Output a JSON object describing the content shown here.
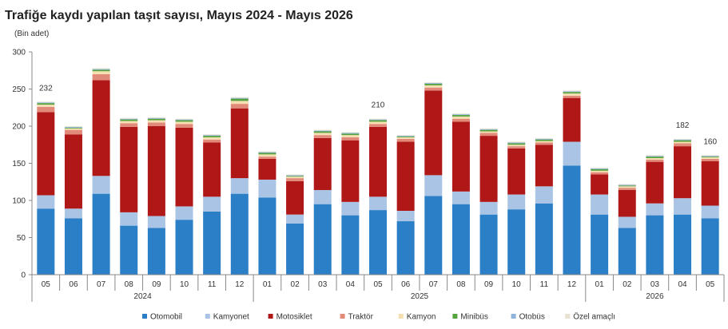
{
  "chart_data": {
    "type": "bar",
    "stacked": true,
    "title": "Trafiğe kaydı yapılan taşıt sayısı, Mayıs 2024 - Mayıs 2026",
    "unit_label": "(Bin adet)",
    "ylim": [
      0,
      300
    ],
    "yticks": [
      0,
      50,
      100,
      150,
      200,
      250,
      300
    ],
    "grid": false,
    "legend_position": "bottom",
    "categories": [
      "05",
      "06",
      "07",
      "08",
      "09",
      "10",
      "11",
      "12",
      "01",
      "02",
      "03",
      "04",
      "05",
      "06",
      "07",
      "08",
      "09",
      "10",
      "11",
      "12",
      "01",
      "02",
      "03",
      "04",
      "05"
    ],
    "year_groups": [
      {
        "label": "2024",
        "start": 0,
        "end": 7
      },
      {
        "label": "2025",
        "start": 8,
        "end": 19
      },
      {
        "label": "2026",
        "start": 20,
        "end": 24
      }
    ],
    "series": [
      {
        "name": "Otomobil",
        "color": "#2a7fc7",
        "values": [
          89,
          76,
          109,
          66,
          63,
          74,
          85,
          109,
          104,
          69,
          95,
          80,
          87,
          72,
          106,
          95,
          81,
          88,
          96,
          147,
          81,
          63,
          80,
          81,
          76
        ]
      },
      {
        "name": "Kamyonet",
        "color": "#a9c4e4",
        "values": [
          18,
          13,
          24,
          18,
          16,
          18,
          20,
          21,
          24,
          12,
          19,
          18,
          18,
          14,
          28,
          17,
          17,
          20,
          23,
          32,
          27,
          15,
          16,
          22,
          17
        ]
      },
      {
        "name": "Motosiklet",
        "color": "#b01818",
        "values": [
          112,
          100,
          129,
          115,
          121,
          106,
          73,
          94,
          28,
          45,
          70,
          83,
          94,
          93,
          114,
          94,
          89,
          62,
          56,
          59,
          27,
          36,
          56,
          70,
          60
        ]
      },
      {
        "name": "Traktör",
        "color": "#e28a7a",
        "values": [
          7,
          6,
          8,
          5,
          5,
          5,
          4,
          6,
          3,
          4,
          4,
          4,
          4,
          4,
          4,
          4,
          4,
          3,
          3,
          3,
          3,
          3,
          3,
          4,
          3
        ]
      },
      {
        "name": "Kamyon",
        "color": "#f5deb0",
        "values": [
          3,
          2,
          4,
          3,
          3,
          3,
          3,
          4,
          3,
          2,
          3,
          3,
          3,
          2,
          3,
          3,
          2,
          2,
          2,
          3,
          2,
          2,
          2,
          2,
          2
        ]
      },
      {
        "name": "Minibüs",
        "color": "#56a33e",
        "values": [
          2,
          1,
          2,
          2,
          2,
          2,
          2,
          3,
          2,
          1,
          2,
          2,
          2,
          1,
          2,
          2,
          2,
          2,
          2,
          2,
          2,
          1,
          2,
          2,
          1
        ]
      },
      {
        "name": "Otobüs",
        "color": "#8fb3da",
        "values": [
          1,
          1,
          1,
          1,
          1,
          1,
          1,
          1,
          1,
          1,
          1,
          1,
          1,
          1,
          1,
          1,
          1,
          1,
          1,
          1,
          1,
          1,
          1,
          1,
          1
        ]
      },
      {
        "name": "Özel amaçlı",
        "color": "#e8e2cf",
        "values": [
          1,
          1,
          1,
          1,
          1,
          1,
          1,
          1,
          1,
          1,
          1,
          1,
          1,
          1,
          1,
          1,
          1,
          1,
          1,
          1,
          1,
          1,
          1,
          1,
          1
        ]
      }
    ],
    "annotations": [
      {
        "index": 0,
        "text": "232"
      },
      {
        "index": 12,
        "text": "210"
      },
      {
        "index": 23,
        "text": "182"
      },
      {
        "index": 24,
        "text": "160"
      }
    ]
  }
}
